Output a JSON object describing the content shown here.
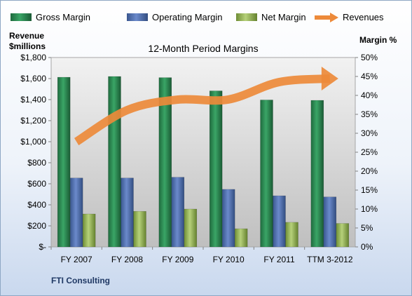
{
  "chart_data": {
    "type": "bar",
    "title": "12-Month Period Margins",
    "company": "FTI Consulting",
    "categories": [
      "FY 2007",
      "FY 2008",
      "FY 2009",
      "FY 2010",
      "FY 2011",
      "TTM 3-2012"
    ],
    "left_axis": {
      "label_line1": "Revenue",
      "label_line2": "$millions",
      "range": [
        0,
        1800
      ],
      "ticks": [
        0,
        200,
        400,
        600,
        800,
        1000,
        1200,
        1400,
        1600,
        1800
      ],
      "tick_labels": [
        "$-",
        "$200",
        "$400",
        "$600",
        "$800",
        "$1,000",
        "$1,200",
        "$1,400",
        "$1,600",
        "$1,800"
      ]
    },
    "right_axis": {
      "label": "Margin %",
      "range": [
        0,
        50
      ],
      "ticks": [
        0,
        5,
        10,
        15,
        20,
        25,
        30,
        35,
        40,
        45,
        50
      ],
      "tick_labels": [
        "0%",
        "5%",
        "10%",
        "15%",
        "20%",
        "25%",
        "30%",
        "35%",
        "40%",
        "45%",
        "50%"
      ]
    },
    "series": [
      {
        "name": "Gross Margin",
        "type": "bar",
        "axis": "right",
        "color": "#2e8b57",
        "values": [
          44.8,
          45.0,
          44.7,
          41.2,
          38.8,
          38.7
        ]
      },
      {
        "name": "Operating Margin",
        "type": "bar",
        "axis": "right",
        "color": "#4f6fae",
        "values": [
          18.2,
          18.2,
          18.4,
          15.2,
          13.5,
          13.2
        ]
      },
      {
        "name": "Net Margin",
        "type": "bar",
        "axis": "right",
        "color": "#9bbb59",
        "values": [
          8.7,
          9.4,
          10.0,
          4.8,
          6.5,
          6.2
        ]
      },
      {
        "name": "Revenues",
        "type": "line",
        "axis": "left",
        "color": "#ed8a3a",
        "values": [
          1000,
          1300,
          1400,
          1401,
          1567,
          1600
        ]
      }
    ],
    "legend": "top",
    "grid": false
  }
}
